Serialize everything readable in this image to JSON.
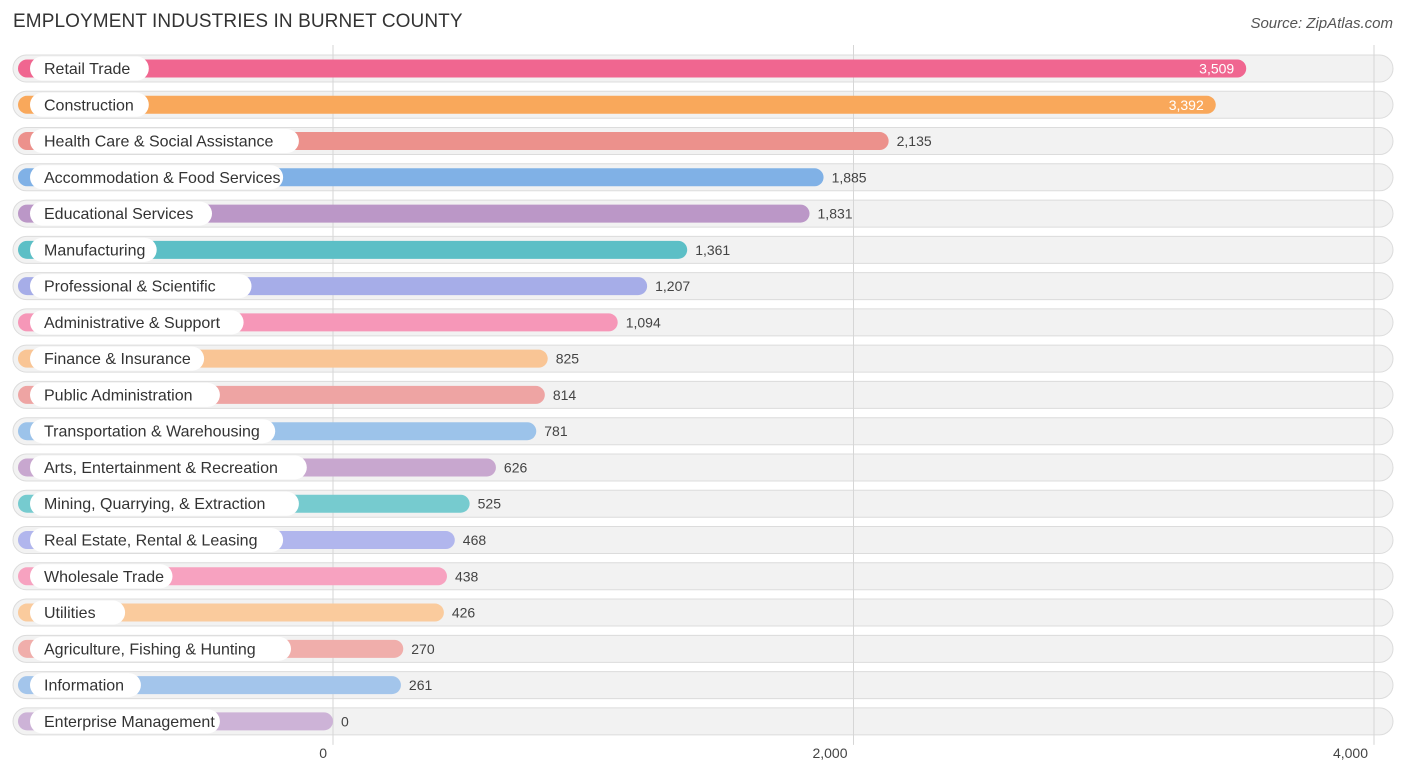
{
  "title": "EMPLOYMENT INDUSTRIES IN BURNET COUNTY",
  "source": "Source: ZipAtlas.com",
  "chart_data": {
    "type": "bar",
    "orientation": "horizontal",
    "title": "EMPLOYMENT INDUSTRIES IN BURNET COUNTY",
    "xlabel": "",
    "ylabel": "",
    "xlim": [
      0,
      4000
    ],
    "xticks": [
      0,
      2000,
      4000
    ],
    "xtick_labels": [
      "0",
      "2,000",
      "4,000"
    ],
    "grid": true,
    "categories": [
      "Retail Trade",
      "Construction",
      "Health Care & Social Assistance",
      "Accommodation & Food Services",
      "Educational Services",
      "Manufacturing",
      "Professional & Scientific",
      "Administrative & Support",
      "Finance & Insurance",
      "Public Administration",
      "Transportation & Warehousing",
      "Arts, Entertainment & Recreation",
      "Mining, Quarrying, & Extraction",
      "Real Estate, Rental & Leasing",
      "Wholesale Trade",
      "Utilities",
      "Agriculture, Fishing & Hunting",
      "Information",
      "Enterprise Management"
    ],
    "values": [
      3509,
      3392,
      2135,
      1885,
      1831,
      1361,
      1207,
      1094,
      825,
      814,
      781,
      626,
      525,
      468,
      438,
      426,
      270,
      261,
      0
    ],
    "value_labels": [
      "3,509",
      "3,392",
      "2,135",
      "1,885",
      "1,831",
      "1,361",
      "1,207",
      "1,094",
      "825",
      "814",
      "781",
      "626",
      "525",
      "468",
      "438",
      "426",
      "270",
      "261",
      "0"
    ],
    "colors": [
      "#f06690",
      "#f9a85b",
      "#ec918c",
      "#80b1e6",
      "#bb97c7",
      "#5cbfc6",
      "#a6ade8",
      "#f697b8",
      "#f9c595",
      "#eea4a3",
      "#9cc3ea",
      "#c8a7cf",
      "#76cbcf",
      "#b1b6ed",
      "#f7a2c0",
      "#facb9d",
      "#f0aeab",
      "#a3c5eb",
      "#cdb3d7"
    ]
  }
}
